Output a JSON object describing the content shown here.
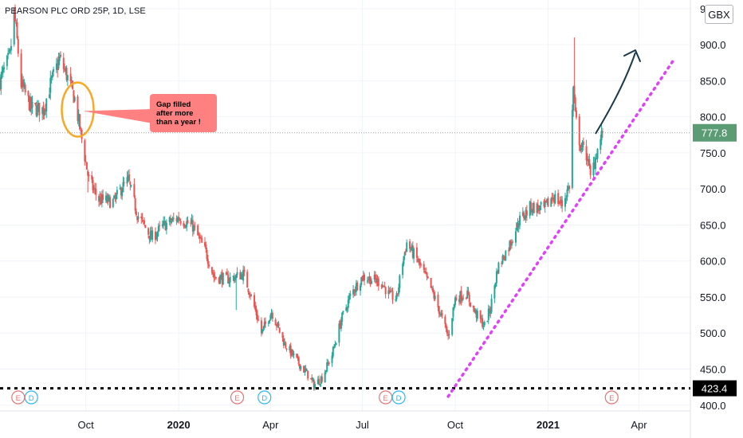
{
  "header": {
    "symbol_line": "PEARSON PLC ORD 25P, 1D, LSE",
    "currency_button": "GBX"
  },
  "price_tags": {
    "current": "777.8",
    "support": "423.4"
  },
  "annotation": {
    "callout_lines": [
      "Gap filled",
      "after more",
      "than a year !"
    ]
  },
  "event_markers": [
    {
      "label": "E",
      "kind": "earnings",
      "date": "2019-07-26"
    },
    {
      "label": "D",
      "kind": "dividend",
      "date": "2019-08-08"
    },
    {
      "label": "E",
      "kind": "earnings",
      "date": "2020-02-28"
    },
    {
      "label": "D",
      "kind": "dividend",
      "date": "2020-03-26"
    },
    {
      "label": "E",
      "kind": "earnings",
      "date": "2020-07-24"
    },
    {
      "label": "D",
      "kind": "dividend",
      "date": "2020-08-06"
    },
    {
      "label": "E",
      "kind": "earnings",
      "date": "2021-03-05"
    }
  ],
  "colors": {
    "up": "#26a69a",
    "down": "#ef5350",
    "current_tag": "#5b9c74",
    "support_tag": "#000000",
    "trendline": "#e040fb",
    "circle": "#f9a825",
    "callout": "#ff8080",
    "arrow": "#1a3a4a",
    "grid": "#f0f3fa",
    "axis_text": "#131722"
  },
  "chart_data": {
    "type": "candlestick",
    "title": "PEARSON PLC ORD 25P, 1D, LSE",
    "ylabel": "GBX",
    "ylim": [
      392,
      962
    ],
    "y_ticks": [
      "400.0",
      "450.0",
      "500.0",
      "550.0",
      "600.0",
      "650.0",
      "700.0",
      "750.0",
      "800.0",
      "850.0",
      "900.0",
      "950.0"
    ],
    "x_ticks": [
      "Oct",
      "2020",
      "Apr",
      "Jul",
      "Oct",
      "2021",
      "Apr"
    ],
    "x_tick_dates": [
      "2019-10-01",
      "2020-01-01",
      "2020-04-01",
      "2020-07-01",
      "2020-10-01",
      "2021-01-01",
      "2021-04-01"
    ],
    "x_range": [
      "2019-07-08",
      "2021-05-22"
    ],
    "grid": true,
    "current_price": 777.8,
    "support_level": 423.4,
    "price_path": [
      [
        "2019-07-08",
        850
      ],
      [
        "2019-07-18",
        885
      ],
      [
        "2019-07-22",
        945
      ],
      [
        "2019-07-25",
        905
      ],
      [
        "2019-07-29",
        845
      ],
      [
        "2019-08-08",
        812
      ],
      [
        "2019-08-20",
        810
      ],
      [
        "2019-08-27",
        845
      ],
      [
        "2019-09-05",
        880
      ],
      [
        "2019-09-12",
        858
      ],
      [
        "2019-09-20",
        825
      ],
      [
        "2019-09-30",
        745
      ],
      [
        "2019-10-04",
        712
      ],
      [
        "2019-10-14",
        685
      ],
      [
        "2019-10-29",
        682
      ],
      [
        "2019-11-05",
        700
      ],
      [
        "2019-11-12",
        712
      ],
      [
        "2019-11-21",
        665
      ],
      [
        "2019-12-05",
        632
      ],
      [
        "2019-12-18",
        650
      ],
      [
        "2020-01-01",
        660
      ],
      [
        "2020-01-15",
        648
      ],
      [
        "2020-01-28",
        612
      ],
      [
        "2020-02-05",
        578
      ],
      [
        "2020-02-20",
        575
      ],
      [
        "2020-03-05",
        582
      ],
      [
        "2020-03-12",
        555
      ],
      [
        "2020-03-19",
        522
      ],
      [
        "2020-03-23",
        500
      ],
      [
        "2020-04-02",
        530
      ],
      [
        "2020-04-15",
        485
      ],
      [
        "2020-04-28",
        460
      ],
      [
        "2020-05-08",
        442
      ],
      [
        "2020-05-14",
        428
      ],
      [
        "2020-05-22",
        438
      ],
      [
        "2020-06-01",
        470
      ],
      [
        "2020-06-10",
        518
      ],
      [
        "2020-06-20",
        555
      ],
      [
        "2020-07-01",
        578
      ],
      [
        "2020-07-10",
        575
      ],
      [
        "2020-07-20",
        570
      ],
      [
        "2020-07-28",
        552
      ],
      [
        "2020-08-04",
        548
      ],
      [
        "2020-08-10",
        600
      ],
      [
        "2020-08-14",
        625
      ],
      [
        "2020-08-25",
        600
      ],
      [
        "2020-09-07",
        562
      ],
      [
        "2020-09-15",
        532
      ],
      [
        "2020-09-24",
        495
      ],
      [
        "2020-10-01",
        548
      ],
      [
        "2020-10-12",
        555
      ],
      [
        "2020-10-20",
        530
      ],
      [
        "2020-10-30",
        510
      ],
      [
        "2020-11-05",
        535
      ],
      [
        "2020-11-12",
        590
      ],
      [
        "2020-11-23",
        620
      ],
      [
        "2020-12-03",
        655
      ],
      [
        "2020-12-15",
        675
      ],
      [
        "2020-12-28",
        672
      ],
      [
        "2021-01-06",
        690
      ],
      [
        "2021-01-15",
        678
      ],
      [
        "2021-01-22",
        705
      ],
      [
        "2021-01-26",
        840
      ],
      [
        "2021-01-28",
        800
      ],
      [
        "2021-02-02",
        760
      ],
      [
        "2021-02-09",
        745
      ],
      [
        "2021-02-12",
        715
      ],
      [
        "2021-02-18",
        750
      ],
      [
        "2021-02-24",
        777.8
      ]
    ]
  }
}
